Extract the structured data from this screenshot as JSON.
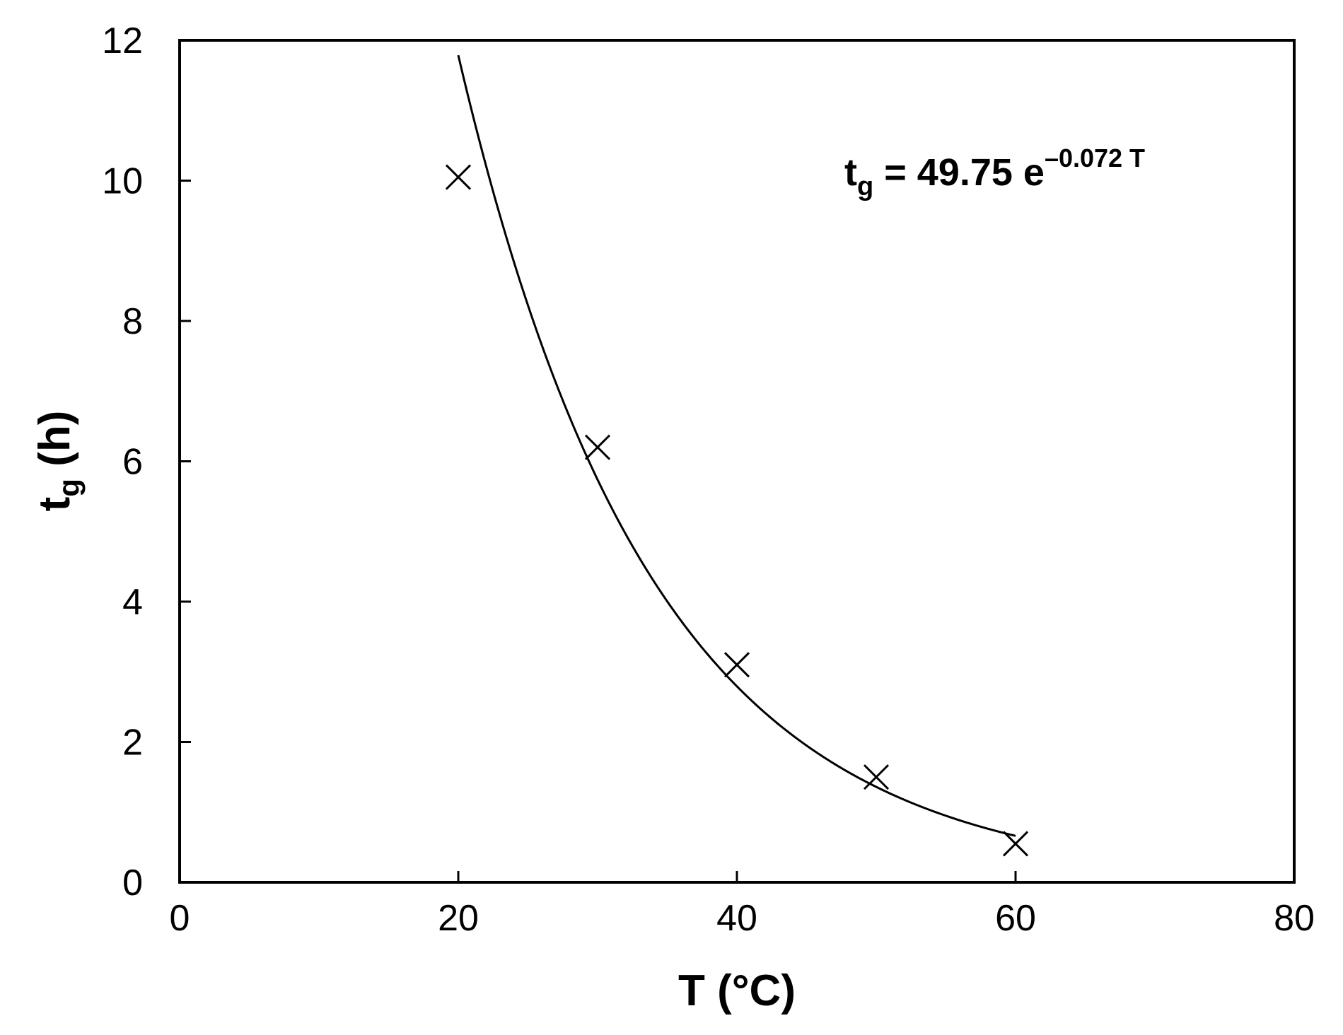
{
  "chart_data": {
    "type": "scatter",
    "title": "",
    "xlabel": "T (°C)",
    "ylabel": {
      "main": "t",
      "sub": "g",
      "unit": "(h)"
    },
    "xlim": [
      0,
      80
    ],
    "ylim": [
      0,
      12
    ],
    "x_ticks": [
      0,
      20,
      40,
      60,
      80
    ],
    "y_ticks": [
      0,
      2,
      4,
      6,
      8,
      10,
      12
    ],
    "grid": false,
    "legend": "none",
    "series": [
      {
        "marker": "x",
        "color": "#000000",
        "x": [
          20,
          30,
          40,
          50,
          60
        ],
        "y": [
          10.05,
          6.2,
          3.1,
          1.5,
          0.55
        ]
      }
    ],
    "fit": {
      "form": "exponential",
      "coefficient": 49.75,
      "rate": -0.072,
      "x_range": [
        20,
        60
      ],
      "color": "#000000"
    },
    "annotation": {
      "t": "t",
      "sub": "g",
      "eq": "= 49.75 e",
      "exp": "–0.072 T"
    }
  }
}
